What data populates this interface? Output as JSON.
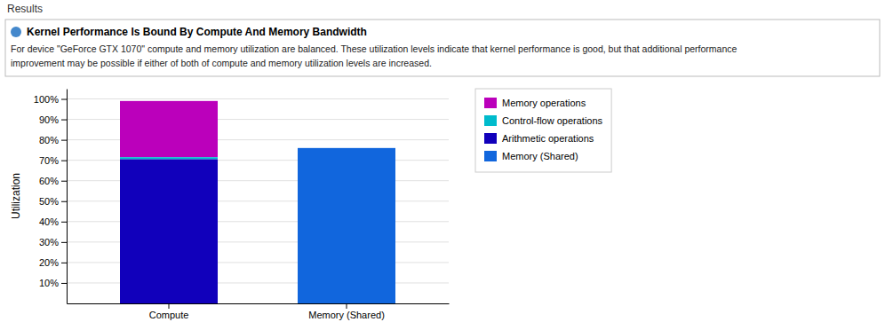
{
  "chart_data": {
    "type": "bar",
    "stacked": true,
    "title": "Results",
    "subtitle": "Kernel Performance Is Bound By Compute And Memory Bandwidth",
    "annotations": [
      "For device \"GeForce GTX 1070\" compute and memory utilization are balanced. These utilization levels indicate that kernel performance is good, but that additional performance",
      "improvement may be possible if either of both of compute and memory utilization levels are increased."
    ],
    "categories": [
      "Compute",
      "Memory (Shared)"
    ],
    "series": [
      {
        "name": "Memory operations",
        "color": "#bb00bb",
        "values": [
          27.5,
          null
        ]
      },
      {
        "name": "Control-flow operations",
        "color": "#00bbcc",
        "values": [
          1.0,
          null
        ]
      },
      {
        "name": "Arithmetic operations",
        "color": "#1100bb",
        "values": [
          70.5,
          null
        ]
      },
      {
        "name": "Memory (Shared)",
        "color": "#1166dd",
        "values": [
          null,
          76.0
        ]
      }
    ],
    "ylabel": "Utilization",
    "ylim": [
      0,
      105
    ],
    "yticks": [
      {
        "value": 10,
        "label": "10%"
      },
      {
        "value": 20,
        "label": "20%"
      },
      {
        "value": 30,
        "label": "30%"
      },
      {
        "value": 40,
        "label": "40%"
      },
      {
        "value": 50,
        "label": "50%"
      },
      {
        "value": 60,
        "label": "60%"
      },
      {
        "value": 70,
        "label": "70%"
      },
      {
        "value": 80,
        "label": "80%"
      },
      {
        "value": 90,
        "label": "90%"
      },
      {
        "value": 100,
        "label": "100%"
      }
    ],
    "grid": true,
    "legend": "right"
  }
}
